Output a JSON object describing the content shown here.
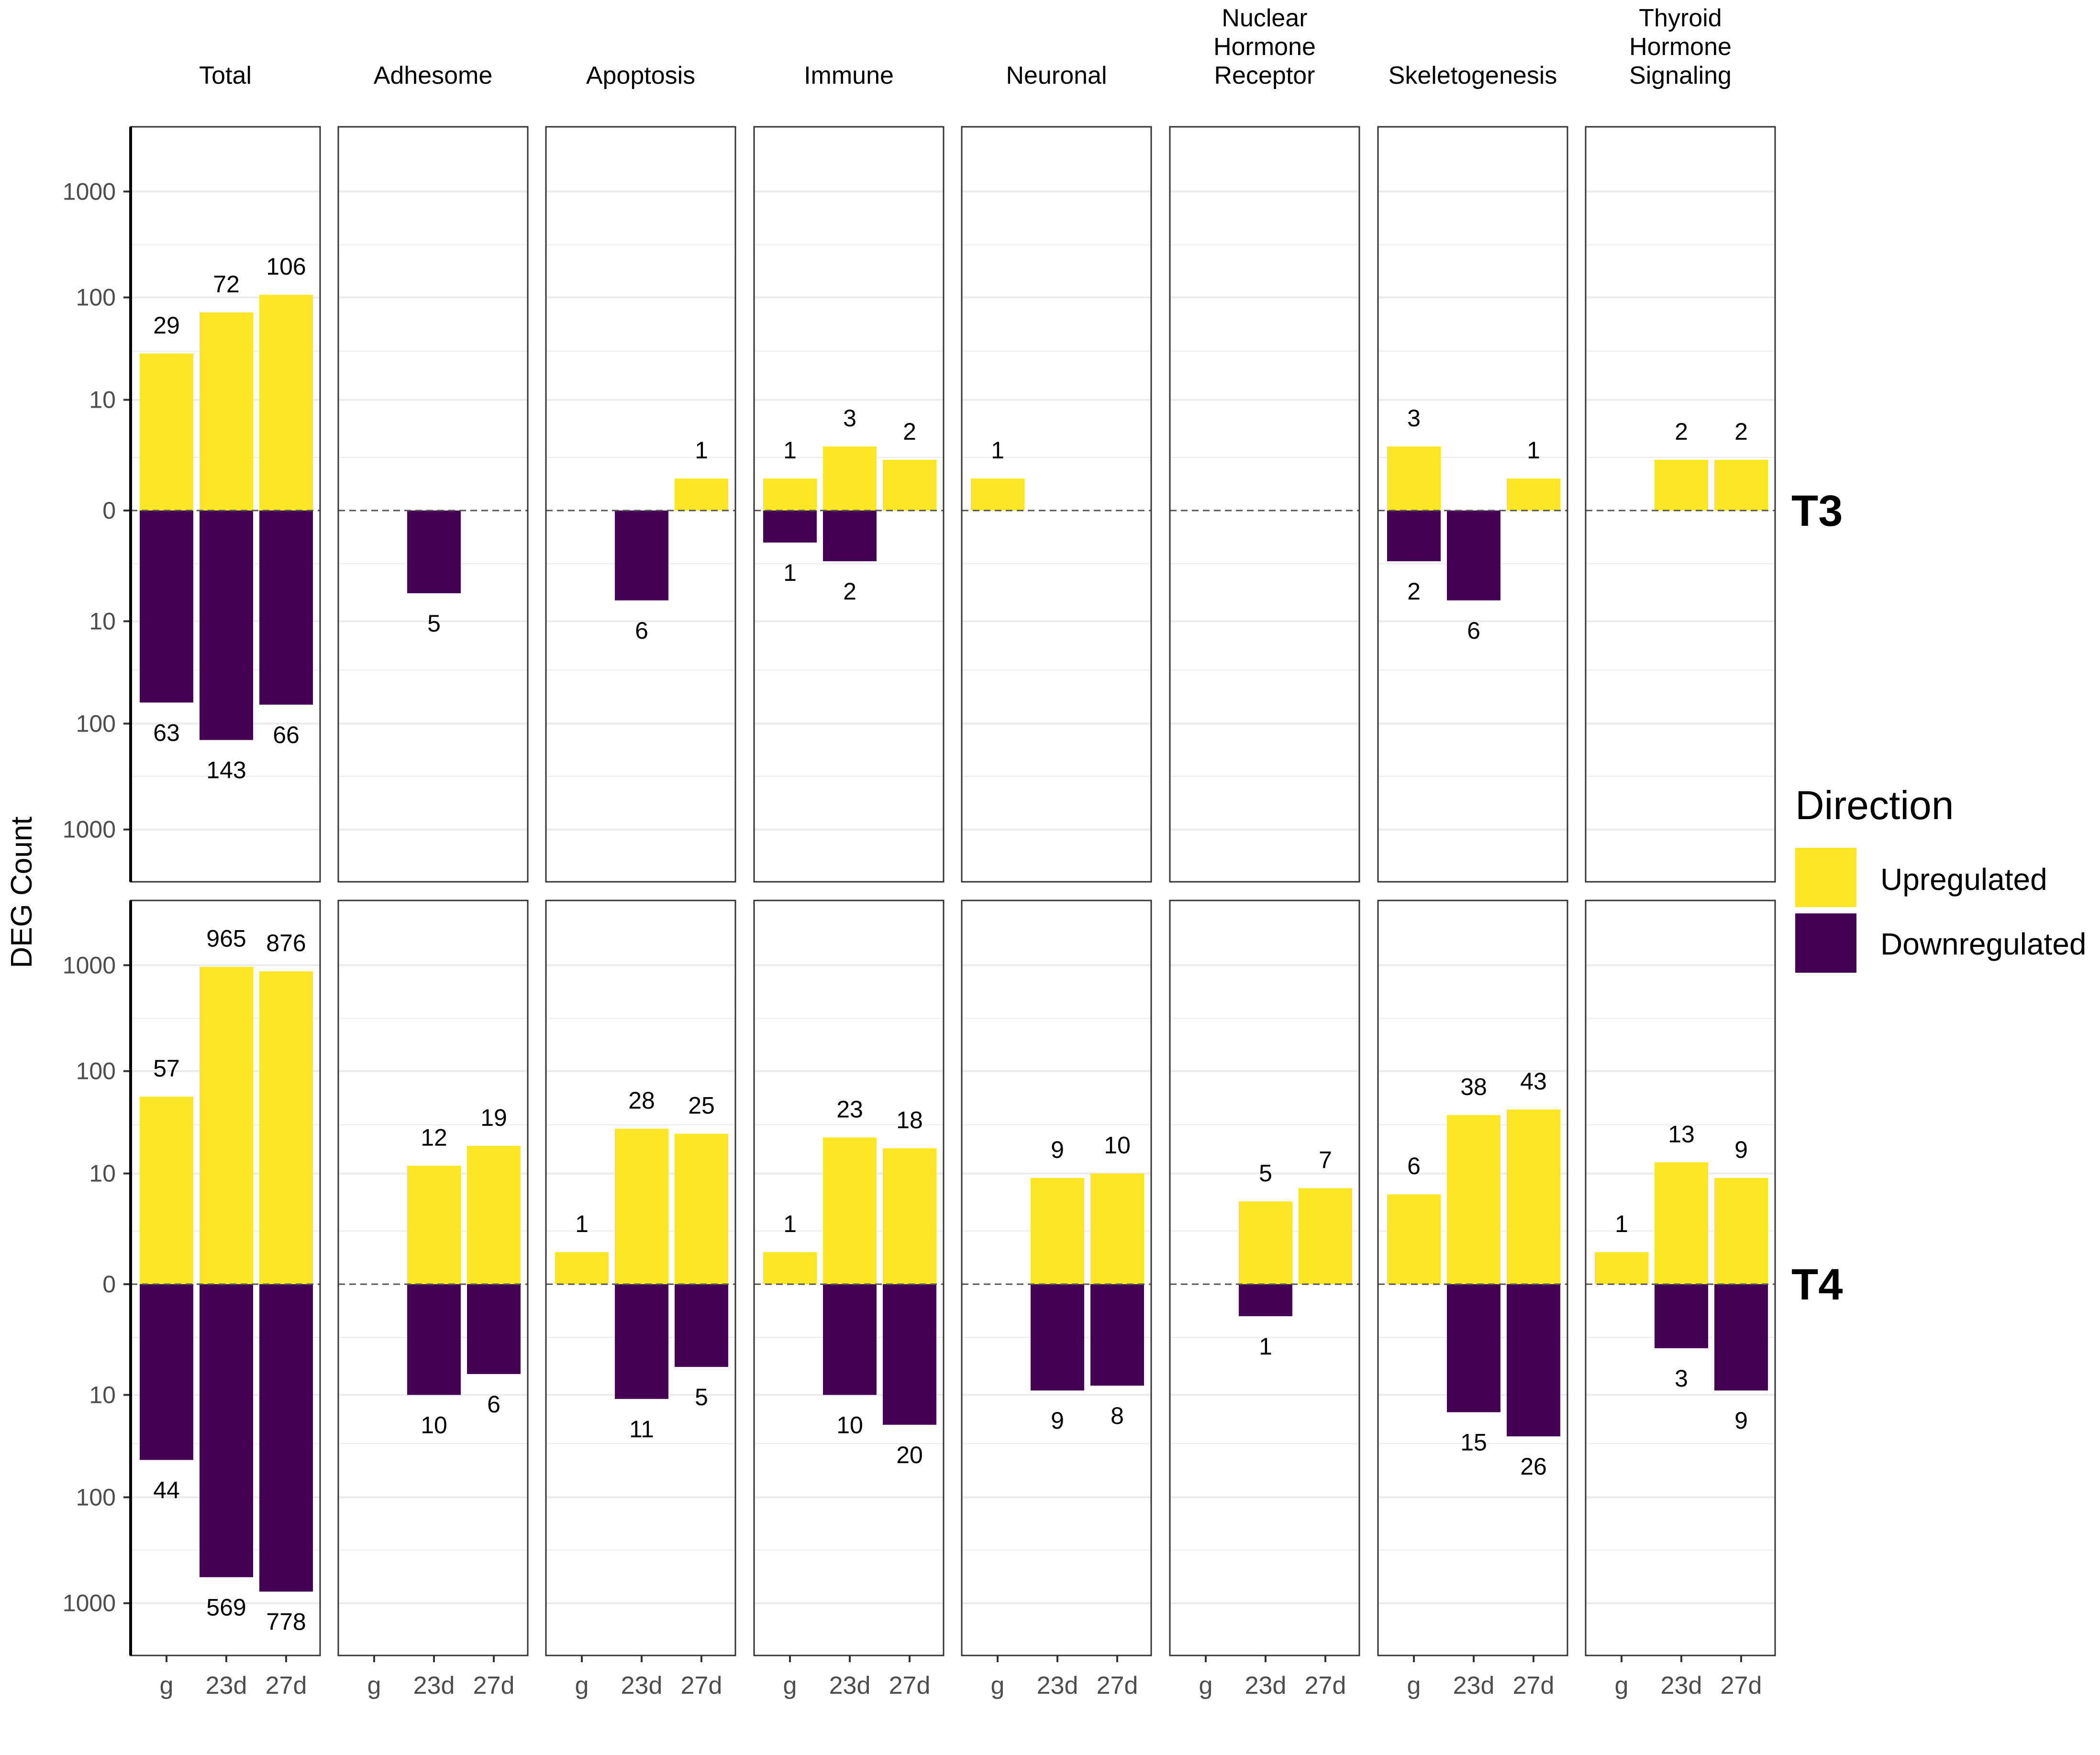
{
  "chart_data": {
    "type": "bar",
    "subtype": "faceted diverging bar chart (pseudo-log scale)",
    "ylabel": "DEG Count",
    "x_categories": [
      "g",
      "23d",
      "27d"
    ],
    "y_ticks": [
      "1000",
      "100",
      "10",
      "0",
      "10",
      "100",
      "1000"
    ],
    "y_tick_values": [
      -1000,
      -100,
      -10,
      0,
      10,
      100,
      1000
    ],
    "legend": {
      "title": "Direction",
      "entries": [
        {
          "label": "Upregulated",
          "color": "#FDE725"
        },
        {
          "label": "Downregulated",
          "color": "#440154"
        }
      ],
      "position": "right"
    },
    "colors": {
      "up": "#FDE725",
      "down": "#440154",
      "zero_line": "#555555",
      "grid": "#EBEBEB"
    },
    "facets": [
      {
        "name": "Total",
        "lines": [
          "Total"
        ]
      },
      {
        "name": "Adhesome",
        "lines": [
          "Adhesome"
        ]
      },
      {
        "name": "Apoptosis",
        "lines": [
          "Apoptosis"
        ]
      },
      {
        "name": "Immune",
        "lines": [
          "Immune"
        ]
      },
      {
        "name": "Neuronal",
        "lines": [
          "Neuronal"
        ]
      },
      {
        "name": "Nuclear Hormone Receptor",
        "lines": [
          "Nuclear",
          "Hormone",
          "Receptor"
        ]
      },
      {
        "name": "Skeletogenesis",
        "lines": [
          "Skeletogenesis"
        ]
      },
      {
        "name": "Thyroid Hormone Signaling",
        "lines": [
          "Thyroid",
          "Hormone",
          "Signaling"
        ]
      }
    ],
    "rows": [
      {
        "label": "T3",
        "up": [
          [
            29,
            72,
            106
          ],
          [
            null,
            null,
            null
          ],
          [
            null,
            null,
            1
          ],
          [
            1,
            3,
            2
          ],
          [
            1,
            null,
            null
          ],
          [
            null,
            null,
            null
          ],
          [
            3,
            null,
            1
          ],
          [
            null,
            2,
            2
          ]
        ],
        "down": [
          [
            63,
            143,
            66
          ],
          [
            null,
            5,
            null
          ],
          [
            null,
            6,
            null
          ],
          [
            1,
            2,
            null
          ],
          [
            null,
            null,
            null
          ],
          [
            null,
            null,
            null
          ],
          [
            2,
            6,
            null
          ],
          [
            null,
            null,
            null
          ]
        ]
      },
      {
        "label": "T4",
        "up": [
          [
            57,
            965,
            876
          ],
          [
            null,
            12,
            19
          ],
          [
            1,
            28,
            25
          ],
          [
            1,
            23,
            18
          ],
          [
            null,
            9,
            10
          ],
          [
            null,
            5,
            7
          ],
          [
            6,
            38,
            43
          ],
          [
            1,
            13,
            9
          ]
        ],
        "down": [
          [
            44,
            569,
            778
          ],
          [
            null,
            10,
            6
          ],
          [
            null,
            11,
            5
          ],
          [
            null,
            10,
            20
          ],
          [
            null,
            9,
            8
          ],
          [
            null,
            1,
            null
          ],
          [
            null,
            15,
            26
          ],
          [
            null,
            3,
            9
          ]
        ]
      }
    ]
  }
}
